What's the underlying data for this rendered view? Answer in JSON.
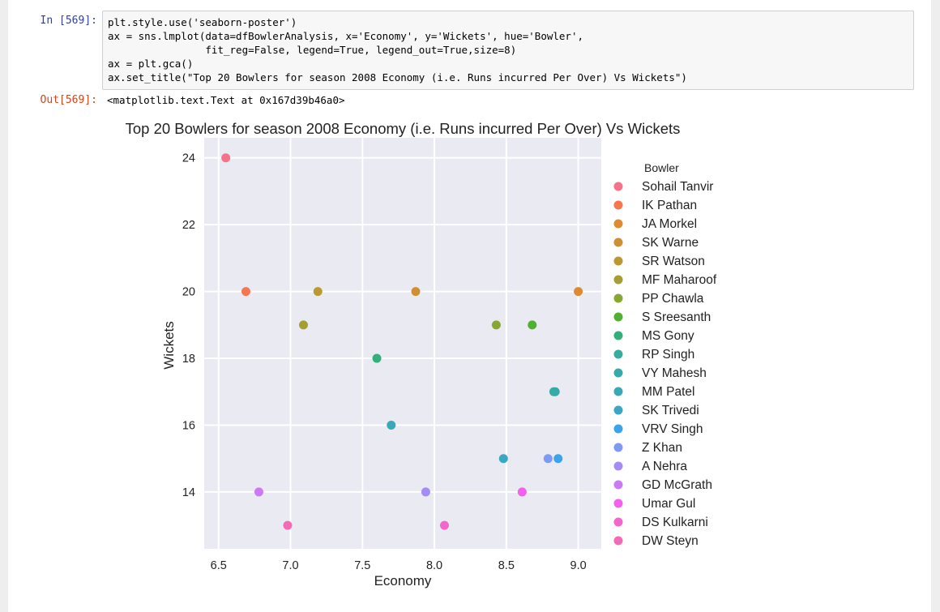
{
  "cell": {
    "in_prompt": "In [569]:",
    "out_prompt": "Out[569]:",
    "code_lines": [
      "plt.style.use('seaborn-poster')",
      "ax = sns.lmplot(data=dfBowlerAnalysis, x='Economy', y='Wickets', hue='Bowler',",
      "                fit_reg=False, legend=True, legend_out=True,size=8)",
      "ax = plt.gca()",
      "ax.set_title(\"Top 20 Bowlers for season 2008 Economy (i.e. Runs incurred Per Over) Vs Wickets\")"
    ],
    "output_text": "<matplotlib.text.Text at 0x167d39b46a0>"
  },
  "chart_data": {
    "type": "scatter",
    "title": "Top 20 Bowlers for season 2008 Economy (i.e. Runs incurred Per Over) Vs Wickets",
    "xlabel": "Economy",
    "ylabel": "Wickets",
    "xlim": [
      6.4,
      9.16
    ],
    "ylim": [
      12.3,
      24.6
    ],
    "xticks": [
      6.5,
      7.0,
      7.5,
      8.0,
      8.5,
      9.0
    ],
    "xtick_labels": [
      "6.5",
      "7.0",
      "7.5",
      "8.0",
      "8.5",
      "9.0"
    ],
    "yticks": [
      14,
      16,
      18,
      20,
      22,
      24
    ],
    "ytick_labels": [
      "14",
      "16",
      "18",
      "20",
      "22",
      "24"
    ],
    "grid": true,
    "legend_title": "Bowler",
    "legend_position": "right, outside",
    "series": [
      {
        "name": "Sohail Tanvir",
        "color": "#f77189",
        "points": [
          [
            6.55,
            24
          ]
        ]
      },
      {
        "name": "IK Pathan",
        "color": "#f7754f",
        "points": [
          [
            6.69,
            20
          ]
        ]
      },
      {
        "name": "JA Morkel",
        "color": "#dd8a30",
        "points": [
          [
            9.0,
            20
          ]
        ]
      },
      {
        "name": "SK Warne",
        "color": "#ce9032",
        "points": [
          [
            7.87,
            20
          ]
        ]
      },
      {
        "name": "SR Watson",
        "color": "#bb9832",
        "points": [
          [
            7.19,
            20
          ]
        ]
      },
      {
        "name": "MF Maharoof",
        "color": "#a59f31",
        "points": [
          [
            7.09,
            19
          ]
        ]
      },
      {
        "name": "PP Chawla",
        "color": "#86a831",
        "points": [
          [
            8.43,
            19
          ]
        ]
      },
      {
        "name": "S Sreesanth",
        "color": "#50b131",
        "points": [
          [
            8.68,
            19
          ]
        ]
      },
      {
        "name": "MS Gony",
        "color": "#33b07a",
        "points": [
          [
            7.6,
            18
          ]
        ]
      },
      {
        "name": "RP Singh",
        "color": "#35ad9c",
        "points": [
          [
            8.83,
            17
          ]
        ]
      },
      {
        "name": "VY Mahesh",
        "color": "#36aaa9",
        "points": [
          [
            8.84,
            17
          ]
        ]
      },
      {
        "name": "MM Patel",
        "color": "#38a9b5",
        "points": [
          [
            7.7,
            16
          ]
        ]
      },
      {
        "name": "SK Trivedi",
        "color": "#39a7c3",
        "points": [
          [
            8.48,
            15
          ]
        ]
      },
      {
        "name": "VRV Singh",
        "color": "#3ba3ec",
        "points": [
          [
            8.86,
            15
          ]
        ]
      },
      {
        "name": "Z Khan",
        "color": "#7e9af4",
        "points": [
          [
            8.79,
            15
          ]
        ]
      },
      {
        "name": "A Nehra",
        "color": "#a48cf4",
        "points": [
          [
            7.94,
            14
          ]
        ]
      },
      {
        "name": "GD McGrath",
        "color": "#cc79f4",
        "points": [
          [
            6.78,
            14
          ]
        ]
      },
      {
        "name": "Umar Gul",
        "color": "#f45fee",
        "points": [
          [
            8.61,
            14
          ]
        ]
      },
      {
        "name": "DS Kulkarni",
        "color": "#f565cc",
        "points": [
          [
            8.07,
            13
          ]
        ]
      },
      {
        "name": "DW Steyn",
        "color": "#f56ab4",
        "points": [
          [
            6.98,
            13
          ]
        ]
      }
    ]
  }
}
